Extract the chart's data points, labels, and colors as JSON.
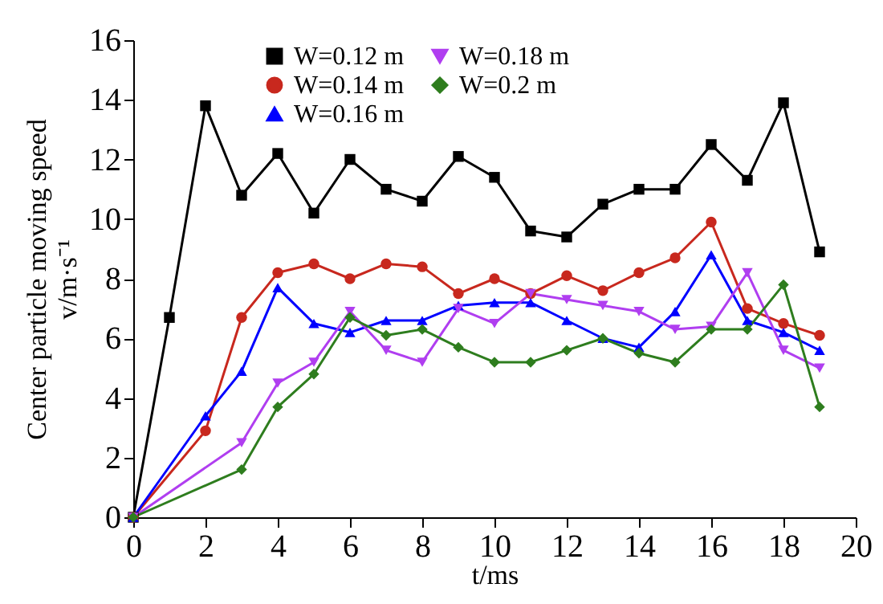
{
  "chart_data": {
    "type": "line",
    "xlabel": "t/ms",
    "ylabel": "Center particle moving speed\nv/m·s⁻¹",
    "x": [
      0,
      1,
      2,
      3,
      4,
      5,
      6,
      7,
      8,
      9,
      10,
      11,
      12,
      13,
      14,
      15,
      16,
      17,
      18,
      19
    ],
    "xlim": [
      0,
      20
    ],
    "xticks": [
      0,
      2,
      4,
      6,
      8,
      10,
      12,
      14,
      16,
      18,
      20
    ],
    "ylim": [
      0,
      16
    ],
    "yticks": [
      0,
      2,
      4,
      6,
      8,
      10,
      12,
      14,
      16
    ],
    "grid": false,
    "legend": "top",
    "series": [
      {
        "name": "W=0.12 m",
        "color": "#000000",
        "marker": "square",
        "values": [
          0,
          6.7,
          13.8,
          10.8,
          12.2,
          10.2,
          12.0,
          11.0,
          10.6,
          12.1,
          11.4,
          9.6,
          9.4,
          10.5,
          11.0,
          11.0,
          12.5,
          11.3,
          13.9,
          8.9
        ]
      },
      {
        "name": "W=0.14 m",
        "color": "#c8281e",
        "marker": "circle",
        "x": [
          0,
          2,
          3,
          4,
          5,
          6,
          7,
          8,
          9,
          10,
          11,
          12,
          13,
          14,
          15,
          16,
          17,
          18,
          19
        ],
        "values": [
          0,
          2.9,
          6.7,
          8.2,
          8.5,
          8.0,
          8.5,
          8.4,
          7.5,
          8.0,
          7.5,
          8.1,
          7.6,
          8.2,
          8.7,
          9.9,
          7.0,
          6.5,
          6.1
        ]
      },
      {
        "name": "W=0.16 m",
        "color": "#0000ff",
        "marker": "triangle",
        "x": [
          0,
          2,
          3,
          4,
          5,
          6,
          7,
          8,
          9,
          10,
          11,
          12,
          13,
          14,
          15,
          16,
          17,
          18,
          19
        ],
        "values": [
          0,
          3.4,
          4.9,
          7.7,
          6.5,
          6.2,
          6.6,
          6.6,
          7.1,
          7.2,
          7.2,
          6.6,
          6.0,
          5.7,
          6.9,
          8.8,
          6.6,
          6.2,
          5.6
        ]
      },
      {
        "name": "W=0.18 m",
        "color": "#b03ef0",
        "marker": "triangle-down",
        "x": [
          0,
          3,
          4,
          5,
          6,
          7,
          8,
          9,
          10,
          11,
          12,
          13,
          14,
          15,
          16,
          17,
          18,
          19
        ],
        "values": [
          0,
          2.5,
          4.5,
          5.2,
          6.9,
          5.6,
          5.2,
          7.0,
          6.5,
          7.5,
          7.3,
          7.1,
          6.9,
          6.3,
          6.4,
          8.2,
          5.6,
          5.0
        ]
      },
      {
        "name": "W=0.2 m",
        "color": "#2e7d1e",
        "marker": "diamond",
        "x": [
          0,
          3,
          4,
          5,
          6,
          7,
          8,
          9,
          10,
          11,
          12,
          13,
          14,
          15,
          16,
          17,
          18,
          19
        ],
        "values": [
          0,
          1.6,
          3.7,
          4.8,
          6.7,
          6.1,
          6.3,
          5.7,
          5.2,
          5.2,
          5.6,
          6.0,
          5.5,
          5.2,
          6.3,
          6.3,
          7.8,
          3.7
        ]
      }
    ]
  }
}
